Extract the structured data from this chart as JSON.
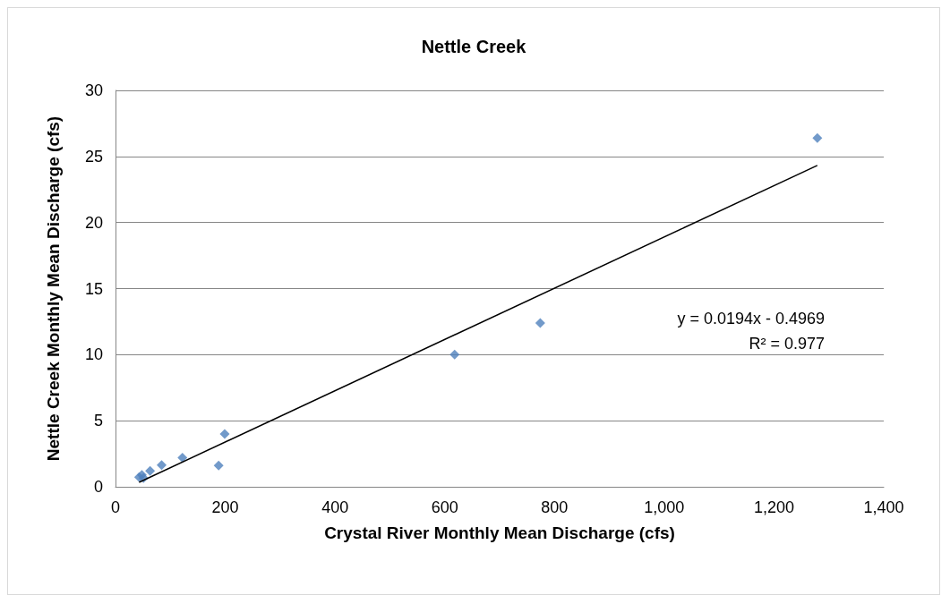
{
  "chart_data": {
    "type": "scatter",
    "title": "Nettle Creek",
    "xlabel": "Crystal River Monthly Mean Discharge (cfs)",
    "ylabel": "Nettle Creek Monthly Mean Discharge (cfs)",
    "xlim": [
      0,
      1400
    ],
    "xticks": [
      0,
      200,
      400,
      600,
      800,
      {
        "value": 1000,
        "label": "1,000"
      },
      {
        "value": 1200,
        "label": "1,200"
      },
      {
        "value": 1400,
        "label": "1,400"
      }
    ],
    "ylim": [
      0,
      30
    ],
    "yticks": [
      0,
      5,
      10,
      15,
      20,
      25,
      30
    ],
    "grid": "y",
    "series": [
      {
        "marker": "diamond",
        "color": "#4f81bd",
        "x": [
          43,
          48,
          51,
          63,
          84,
          122,
          188,
          199,
          618,
          774,
          1279
        ],
        "values": [
          0.73,
          0.9,
          0.66,
          1.2,
          1.65,
          2.2,
          1.6,
          4.0,
          10,
          12.4,
          26.4
        ]
      },
      {
        "type": "line",
        "marker": "none",
        "color": "#000000",
        "x": [
          43,
          1279
        ],
        "values": [
          0.34,
          24.32
        ]
      }
    ],
    "annotations": [
      "y = 0.0194x - 0.4969",
      "R² = 0.977"
    ]
  }
}
